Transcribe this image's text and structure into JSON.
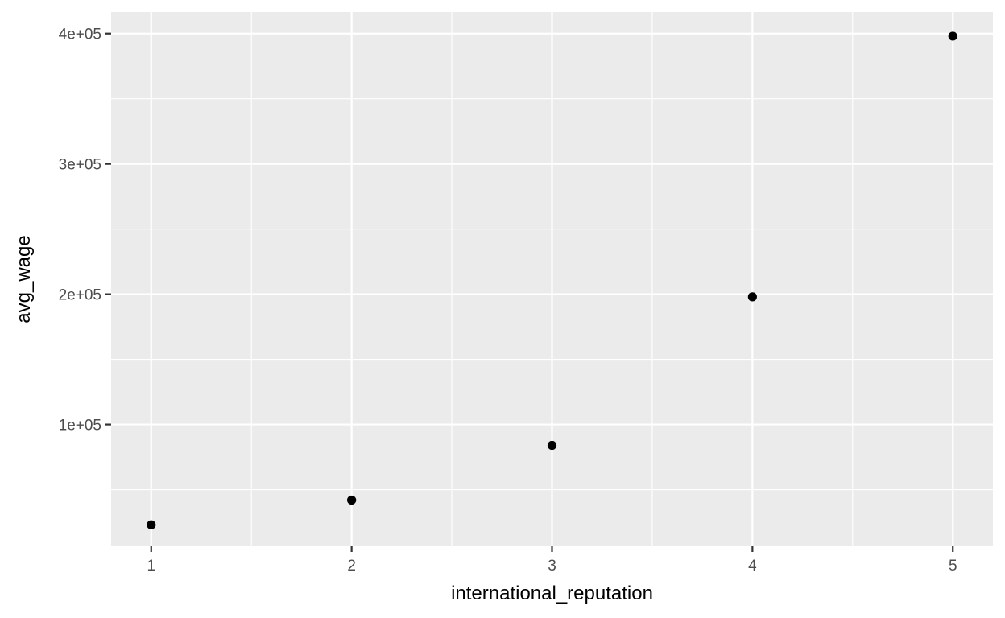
{
  "chart_data": {
    "type": "scatter",
    "xlabel": "international_reputation",
    "ylabel": "avg_wage",
    "x": [
      1,
      2,
      3,
      4,
      5
    ],
    "y": [
      23000,
      42000,
      84000,
      198000,
      398000
    ],
    "xlim": [
      0.8,
      5.2
    ],
    "ylim": [
      6500,
      416500
    ],
    "x_ticks": [
      1,
      2,
      3,
      4,
      5
    ],
    "x_tick_labels": [
      "1",
      "2",
      "3",
      "4",
      "5"
    ],
    "y_ticks": [
      100000,
      200000,
      300000,
      400000
    ],
    "y_tick_labels": [
      "1e+05",
      "2e+05",
      "3e+05",
      "4e+05"
    ],
    "x_minor_ticks": [
      1.5,
      2.5,
      3.5,
      4.5
    ],
    "y_minor_ticks": [
      50000,
      150000,
      250000,
      350000
    ],
    "grid": true,
    "legend": "none",
    "colors": {
      "panel_background": "#ebebeb",
      "grid": "#ffffff",
      "point": "#000000",
      "tick_text": "#4d4d4d",
      "tick_mark": "#333333",
      "axis_title": "#000000"
    }
  }
}
